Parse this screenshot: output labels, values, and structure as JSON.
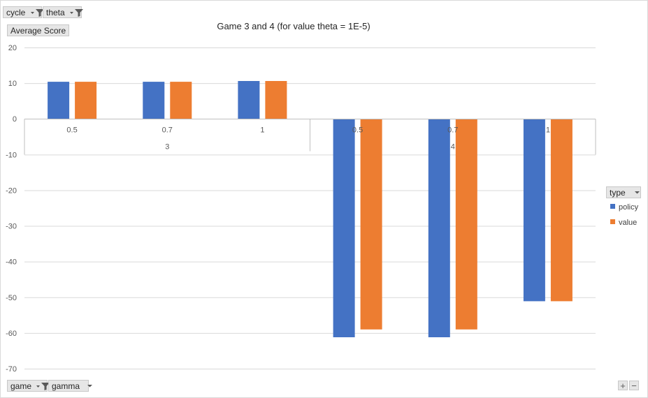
{
  "filters": {
    "top": [
      {
        "label": "cycle",
        "icon": "filter-dropdown-icon"
      },
      {
        "label": "theta",
        "icon": "filter-dropdown-icon"
      }
    ],
    "bottom": [
      {
        "label": "game",
        "icon": "filter-dropdown-icon"
      },
      {
        "label": "gamma",
        "icon": "dropdown-icon"
      }
    ],
    "value_field": "Average Score",
    "legend_field": "type"
  },
  "zoom": {
    "plus": "+",
    "minus": "−"
  },
  "colors": {
    "policy": "#4472c4",
    "value": "#ed7d31",
    "grid": "#d9d9d9",
    "axis": "#bfbfbf"
  },
  "chart_data": {
    "type": "bar",
    "title": "Game 3 and 4 (for value theta = 1E-5)",
    "groups": [
      {
        "label": "3",
        "categories": [
          "0.5",
          "0.7",
          "1"
        ]
      },
      {
        "label": "4",
        "categories": [
          "0.5",
          "0.7",
          "1"
        ]
      }
    ],
    "categories": [
      "0.5",
      "0.7",
      "1",
      "0.5",
      "0.7",
      "1"
    ],
    "series": [
      {
        "name": "policy",
        "values": [
          10.4,
          10.4,
          10.6,
          -61.2,
          -61.2,
          -51.1
        ]
      },
      {
        "name": "value",
        "values": [
          10.4,
          10.4,
          10.6,
          -59.0,
          -59.0,
          -51.1
        ]
      }
    ],
    "xlabel": "",
    "ylabel": "",
    "ylim": [
      -70,
      20
    ],
    "yticks": [
      "20",
      "10",
      "0",
      "-10",
      "-20",
      "-30",
      "-40",
      "-50",
      "-60",
      "-70"
    ],
    "grid": true,
    "legend": "right"
  }
}
